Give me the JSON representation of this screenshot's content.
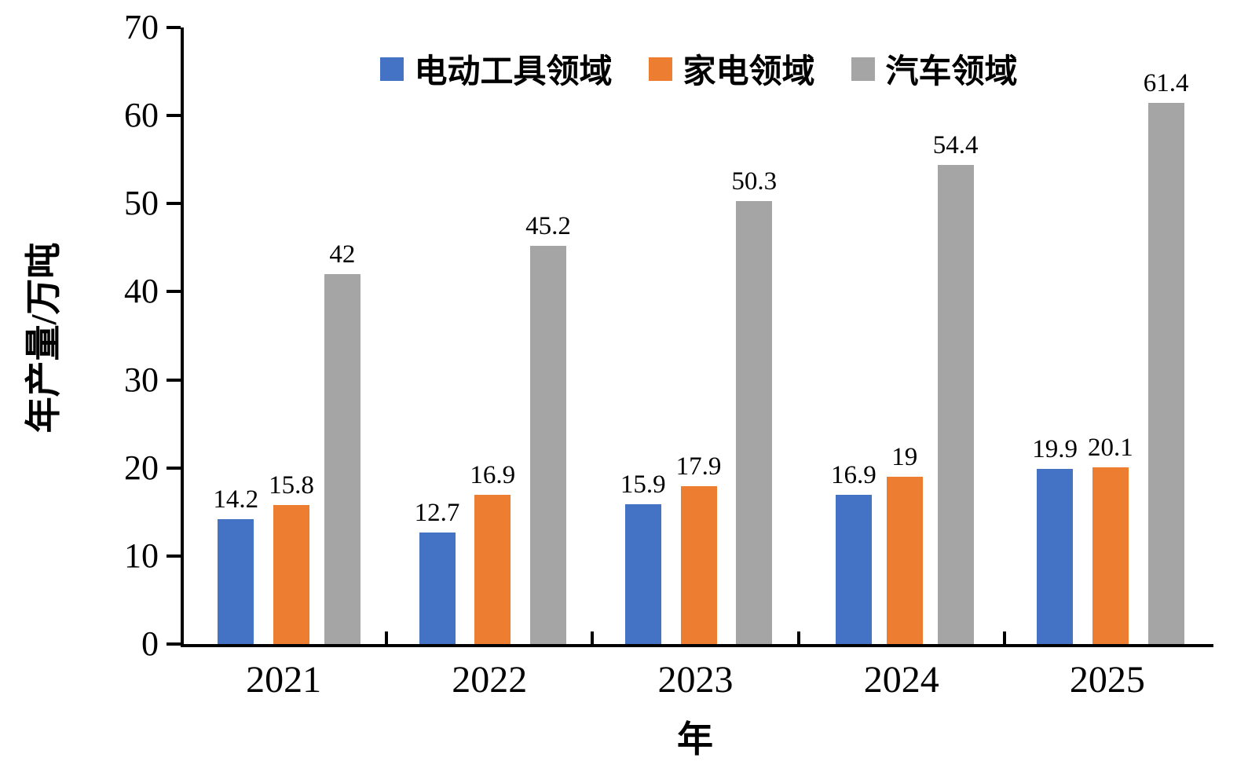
{
  "chart_data": {
    "type": "bar",
    "categories": [
      "2021",
      "2022",
      "2023",
      "2024",
      "2025"
    ],
    "series": [
      {
        "name": "电动工具领域",
        "color": "#4472C4",
        "values": [
          14.2,
          12.7,
          15.9,
          16.9,
          19.9
        ]
      },
      {
        "name": "家电领域",
        "color": "#ED7D31",
        "values": [
          15.8,
          16.9,
          17.9,
          19,
          20.1
        ]
      },
      {
        "name": "汽车领域",
        "color": "#A5A5A5",
        "values": [
          42,
          45.2,
          50.3,
          54.4,
          61.4
        ]
      }
    ],
    "title": "",
    "xlabel": "年",
    "ylabel": "年产量/万吨",
    "ylim": [
      0,
      70
    ],
    "yticks": [
      0,
      10,
      20,
      30,
      40,
      50,
      60,
      70
    ],
    "legend_position": "upper center",
    "grid": false,
    "bar_value_labels": true
  }
}
